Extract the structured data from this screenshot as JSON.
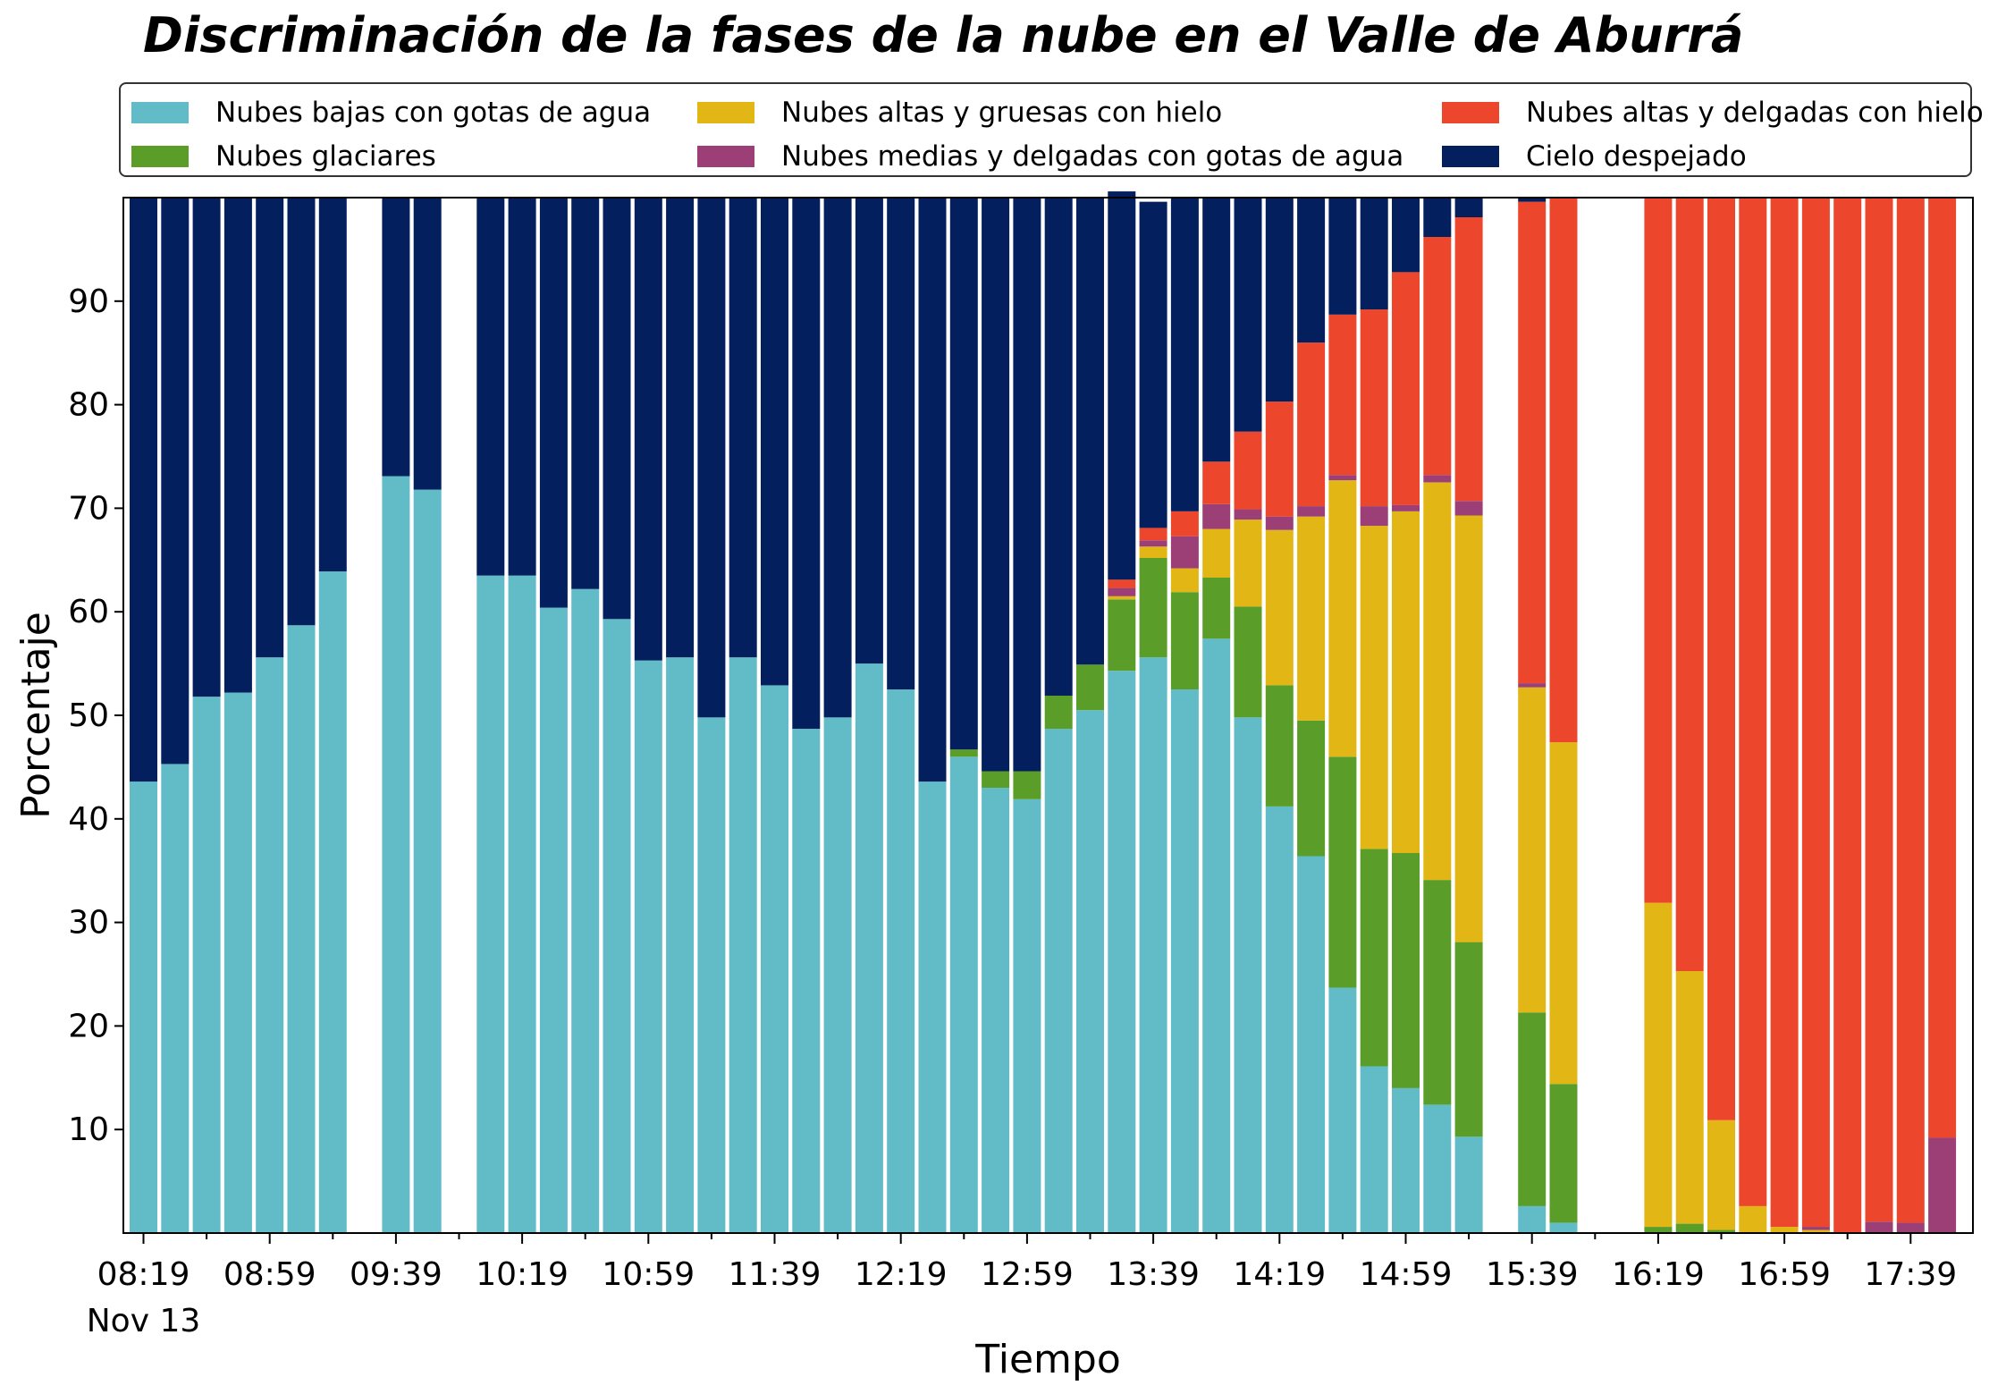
{
  "title": "Discriminación de la fases de la nube en el Valle de Aburrá",
  "legend": [
    {
      "label": "Nubes bajas con gotas de agua",
      "color": "#62bcc8"
    },
    {
      "label": "Nubes glaciares",
      "color": "#5a9e29"
    },
    {
      "label": "Nubes altas y gruesas con hielo",
      "color": "#e2b614"
    },
    {
      "label": "Nubes medias y delgadas con gotas de agua",
      "color": "#9c3f77"
    },
    {
      "label": "Nubes altas y delgadas con hielo",
      "color": "#ec462c"
    },
    {
      "label": "Cielo despejado",
      "color": "#041f5d"
    }
  ],
  "chart_data": {
    "type": "bar",
    "stacked": true,
    "title": "Discriminación de la fases de la nube en el Valle de Aburrá",
    "xlabel": "Tiempo",
    "ylabel": "Porcentaje",
    "ylim": [
      0,
      100
    ],
    "yticks": [
      10,
      20,
      30,
      40,
      50,
      60,
      70,
      80,
      90
    ],
    "xticks": [
      "08:19",
      "08:59",
      "09:39",
      "10:19",
      "10:59",
      "11:39",
      "12:19",
      "12:59",
      "13:39",
      "14:19",
      "14:59",
      "15:39",
      "16:19",
      "16:59",
      "17:39"
    ],
    "xtick_sublabel": "Nov 13",
    "grid": false,
    "legend_position": "top",
    "categories": [
      "08:19",
      "08:29",
      "08:39",
      "08:49",
      "08:59",
      "09:09",
      "09:19",
      "09:29",
      "09:39",
      "09:49",
      "09:59",
      "10:09",
      "10:19",
      "10:29",
      "10:39",
      "10:49",
      "10:59",
      "11:09",
      "11:19",
      "11:29",
      "11:39",
      "11:49",
      "11:59",
      "12:09",
      "12:19",
      "12:29",
      "12:39",
      "12:49",
      "12:59",
      "13:09",
      "13:19",
      "13:29",
      "13:39",
      "13:49",
      "13:59",
      "14:09",
      "14:19",
      "14:29",
      "14:39",
      "14:49",
      "14:59",
      "15:09",
      "15:19",
      "15:29",
      "15:39",
      "15:49",
      "15:59",
      "16:09",
      "16:19",
      "16:29",
      "16:39",
      "16:49",
      "16:59",
      "17:09",
      "17:19",
      "17:29",
      "17:39",
      "17:49"
    ],
    "series": [
      {
        "name": "Nubes bajas con gotas de agua",
        "color": "#62bcc8",
        "values": [
          43.6,
          45.3,
          51.8,
          52.2,
          55.6,
          58.7,
          63.9,
          null,
          73.1,
          71.8,
          null,
          63.5,
          63.5,
          60.4,
          62.2,
          59.3,
          55.3,
          55.6,
          49.8,
          55.6,
          52.9,
          48.7,
          49.8,
          55.0,
          52.5,
          43.6,
          46.0,
          43.0,
          41.9,
          48.7,
          50.5,
          54.3,
          55.6,
          52.5,
          57.4,
          49.8,
          41.2,
          36.4,
          23.7,
          16.1,
          14.0,
          12.4,
          9.3,
          null,
          2.6,
          1.0,
          null,
          0,
          0,
          0,
          0,
          0,
          0,
          0,
          0,
          0,
          0,
          0
        ]
      },
      {
        "name": "Nubes glaciares",
        "color": "#5a9e29",
        "values": [
          0,
          0,
          0,
          0,
          0,
          0,
          0,
          null,
          0,
          0,
          null,
          0,
          0,
          0,
          0,
          0,
          0,
          0,
          0,
          0,
          0,
          0,
          0,
          0,
          0,
          0,
          0.7,
          1.6,
          2.7,
          3.2,
          4.4,
          6.9,
          9.6,
          9.4,
          5.9,
          10.7,
          11.7,
          13.1,
          22.3,
          21.0,
          22.7,
          21.7,
          18.8,
          null,
          18.7,
          13.4,
          null,
          0,
          0.6,
          0.9,
          0.3,
          0,
          0,
          0,
          0,
          0,
          0,
          0
        ]
      },
      {
        "name": "Nubes altas y gruesas con hielo",
        "color": "#e2b614",
        "values": [
          0,
          0,
          0,
          0,
          0,
          0,
          0,
          null,
          0,
          0,
          null,
          0,
          0,
          0,
          0,
          0,
          0,
          0,
          0,
          0,
          0,
          0,
          0,
          0,
          0,
          0,
          0,
          0,
          0,
          0,
          0,
          0.3,
          1.1,
          2.3,
          4.7,
          8.4,
          15.0,
          19.7,
          26.7,
          31.2,
          33.0,
          38.4,
          41.2,
          null,
          31.4,
          33.0,
          null,
          0,
          31.3,
          24.4,
          10.6,
          2.6,
          0.6,
          0.3,
          0,
          0,
          0,
          0
        ]
      },
      {
        "name": "Nubes medias y delgadas con gotas de agua",
        "color": "#9c3f77",
        "values": [
          0,
          0,
          0,
          0,
          0,
          0,
          0,
          null,
          0,
          0,
          null,
          0,
          0,
          0,
          0,
          0,
          0,
          0,
          0,
          0,
          0,
          0,
          0,
          0,
          0,
          0,
          0,
          0,
          0,
          0,
          0,
          0.8,
          0.6,
          3.1,
          2.4,
          1.0,
          1.3,
          1.0,
          0.5,
          1.9,
          0.6,
          0.7,
          1.4,
          null,
          0.4,
          0,
          null,
          0,
          0,
          0,
          0,
          0,
          0,
          0.3,
          0,
          1.1,
          1.0,
          9.2
        ]
      },
      {
        "name": "Nubes altas y delgadas con hielo",
        "color": "#ec462c",
        "values": [
          0,
          0,
          0,
          0,
          0,
          0,
          0,
          null,
          0,
          0,
          null,
          0,
          0,
          0,
          0,
          0,
          0,
          0,
          0,
          0,
          0,
          0,
          0,
          0,
          0,
          0,
          0,
          0,
          0,
          0,
          0,
          0.8,
          1.2,
          2.4,
          4.1,
          7.5,
          11.1,
          15.8,
          15.5,
          19.0,
          22.5,
          23.0,
          27.4,
          null,
          46.5,
          52.6,
          null,
          0,
          68.1,
          74.7,
          89.1,
          97.4,
          99.4,
          99.4,
          100,
          98.9,
          99.0,
          90.8
        ]
      },
      {
        "name": "Cielo despejado",
        "color": "#041f5d",
        "values": [
          56.4,
          54.7,
          48.2,
          47.8,
          44.4,
          41.3,
          36.1,
          null,
          26.9,
          28.2,
          null,
          36.5,
          36.5,
          39.6,
          37.8,
          40.7,
          44.7,
          44.4,
          50.2,
          44.4,
          47.1,
          51.3,
          50.2,
          45.0,
          47.5,
          56.4,
          53.3,
          55.4,
          55.4,
          48.1,
          45.1,
          37.5,
          31.5,
          30.3,
          25.5,
          22.6,
          19.7,
          14.0,
          11.3,
          10.8,
          7.2,
          3.8,
          1.9,
          null,
          0.4,
          0.0,
          null,
          0,
          0,
          0,
          0,
          0,
          0,
          0,
          0,
          0,
          0,
          0
        ]
      }
    ]
  }
}
